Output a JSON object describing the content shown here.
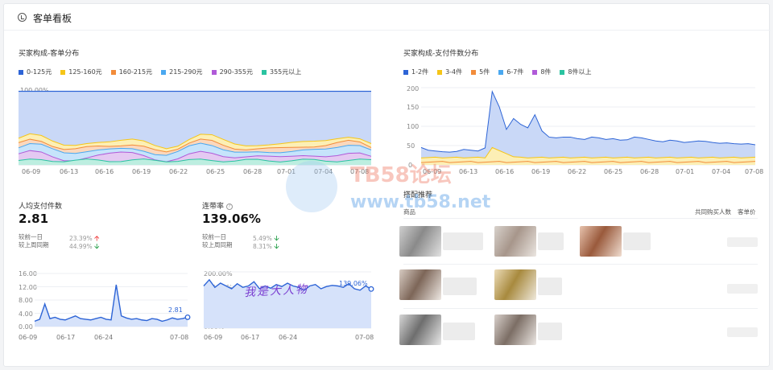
{
  "header": {
    "title": "客单看板",
    "icon": "dashboard-icon"
  },
  "left_chart": {
    "title": "买家构成-客单分布",
    "legend": [
      {
        "label": "0-125元",
        "color": "#2d64d6"
      },
      {
        "label": "125-160元",
        "color": "#f5c518"
      },
      {
        "label": "160-215元",
        "color": "#f28c3a"
      },
      {
        "label": "215-290元",
        "color": "#4aa8f0"
      },
      {
        "label": "290-355元",
        "color": "#b05ad8"
      },
      {
        "label": "355元以上",
        "color": "#2ac3a0"
      }
    ],
    "y_ticks": [
      "100.00%",
      "75.00%",
      "50.00%",
      "25.00%",
      "0.00%"
    ],
    "x_ticks": [
      "06-09",
      "06-13",
      "06-16",
      "06-19",
      "06-22",
      "06-25",
      "06-28",
      "07-01",
      "07-04",
      "07-08"
    ]
  },
  "right_chart": {
    "title": "买家构成-支付件数分布",
    "legend": [
      {
        "label": "1-2件",
        "color": "#2d64d6"
      },
      {
        "label": "3-4件",
        "color": "#f5c518"
      },
      {
        "label": "5件",
        "color": "#f28c3a"
      },
      {
        "label": "6-7件",
        "color": "#4aa8f0"
      },
      {
        "label": "8件",
        "color": "#b05ad8"
      },
      {
        "label": "8件以上",
        "color": "#2ac3a0"
      }
    ],
    "y_ticks": [
      "200",
      "150",
      "100",
      "50",
      "0"
    ],
    "x_ticks": [
      "06-09",
      "06-13",
      "06-16",
      "06-19",
      "06-22",
      "06-25",
      "06-28",
      "07-01",
      "07-04",
      "07-08"
    ]
  },
  "metric_items": {
    "label": "人均支付件数",
    "value": "2.81",
    "compare": [
      {
        "label": "较前一日",
        "value": "23.39%",
        "trend": "up"
      },
      {
        "label": "较上周同期",
        "value": "44.99%",
        "trend": "down"
      }
    ],
    "y_ticks": [
      "16.00",
      "12.00",
      "8.00",
      "4.00",
      "0.00"
    ],
    "x_ticks": [
      "06-09",
      "06-17",
      "06-24",
      "07-08"
    ],
    "end_label": "2.81"
  },
  "metric_rate": {
    "label": "连带率",
    "value": "139.06%",
    "compare": [
      {
        "label": "较前一日",
        "value": "5.49%",
        "trend": "down"
      },
      {
        "label": "较上周同期",
        "value": "8.31%",
        "trend": "down"
      }
    ],
    "y_ticks": [
      "200.00%",
      "150.00%",
      "100.00%",
      "50.00%",
      "0.00%"
    ],
    "x_ticks": [
      "06-09",
      "06-17",
      "06-24",
      "07-08"
    ],
    "end_label": "139.06%",
    "overlay_text": "我是大人物"
  },
  "recommend": {
    "title": "搭配推荐",
    "col_product": "商品",
    "col_buyers": "共同购买人数",
    "col_price": "客单价"
  },
  "watermark": {
    "text1": "TB58论坛",
    "text2": "www.tb58.net"
  }
}
